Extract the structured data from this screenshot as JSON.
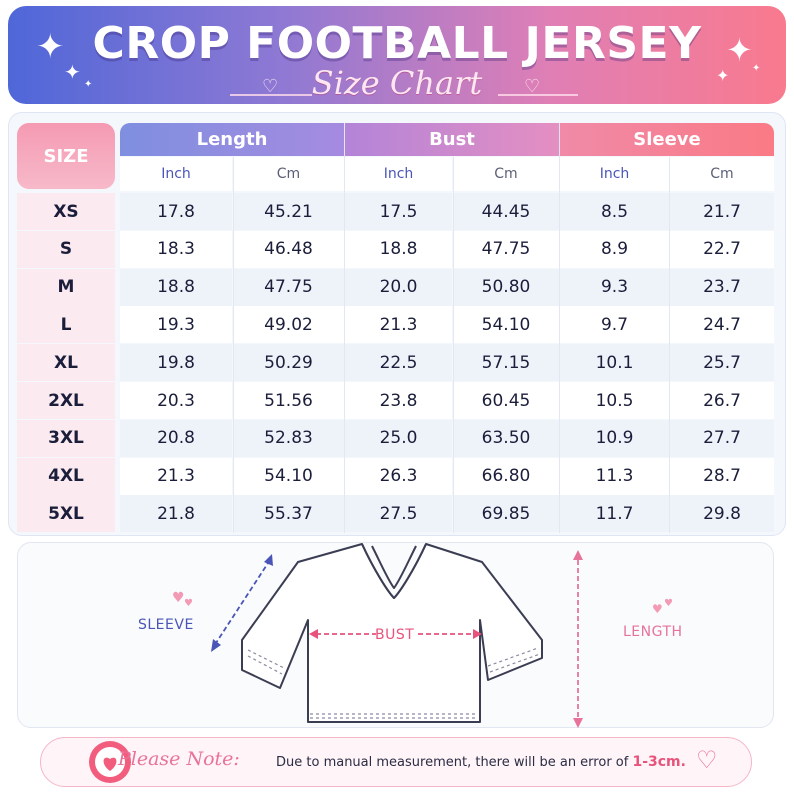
{
  "header": {
    "title": "CROP FOOTBALL JERSEY",
    "subtitle": "Size Chart"
  },
  "table": {
    "size_header": "SIZE",
    "groups": [
      "Length",
      "Bust",
      "Sleeve"
    ],
    "units": [
      "Inch",
      "Cm",
      "Inch",
      "Cm",
      "Inch",
      "Cm"
    ],
    "rows": [
      {
        "size": "XS",
        "values": [
          "17.8",
          "45.21",
          "17.5",
          "44.45",
          "8.5",
          "21.7"
        ]
      },
      {
        "size": "S",
        "values": [
          "18.3",
          "46.48",
          "18.8",
          "47.75",
          "8.9",
          "22.7"
        ]
      },
      {
        "size": "M",
        "values": [
          "18.8",
          "47.75",
          "20.0",
          "50.80",
          "9.3",
          "23.7"
        ]
      },
      {
        "size": "L",
        "values": [
          "19.3",
          "49.02",
          "21.3",
          "54.10",
          "9.7",
          "24.7"
        ]
      },
      {
        "size": "XL",
        "values": [
          "19.8",
          "50.29",
          "22.5",
          "57.15",
          "10.1",
          "25.7"
        ]
      },
      {
        "size": "2XL",
        "values": [
          "20.3",
          "51.56",
          "23.8",
          "60.45",
          "10.5",
          "26.7"
        ]
      },
      {
        "size": "3XL",
        "values": [
          "20.8",
          "52.83",
          "25.0",
          "63.50",
          "10.9",
          "27.7"
        ]
      },
      {
        "size": "4XL",
        "values": [
          "21.3",
          "54.10",
          "26.3",
          "66.80",
          "11.3",
          "28.7"
        ]
      },
      {
        "size": "5XL",
        "values": [
          "21.8",
          "55.37",
          "27.5",
          "69.85",
          "11.7",
          "29.8"
        ]
      }
    ]
  },
  "diagram": {
    "sleeve_label": "SLEEVE",
    "bust_label": "BUST",
    "length_label": "LENGTH"
  },
  "note": {
    "title": "Please Note:",
    "text": "Due to manual measurement, there will be an error of",
    "emphasis": "1-3cm."
  },
  "colors": {
    "banner_start": "#4f67d8",
    "banner_end": "#f97a8e",
    "length_header": "#8f8de0",
    "bust_header": "#cc89cd",
    "sleeve_header": "#f58296",
    "size_column": "#f7a8bd",
    "accent_pink": "#e8739a",
    "sleeve_blue": "#4a55b8"
  },
  "icons": [
    "sparkle-icon",
    "heart-icon",
    "clock-heart-icon",
    "heart-outline-icon",
    "jersey-outline-icon"
  ]
}
